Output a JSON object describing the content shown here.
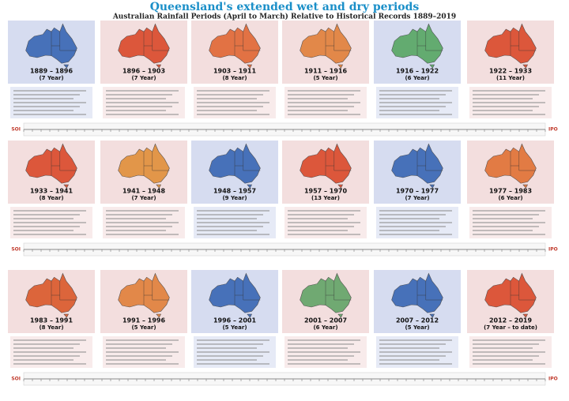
{
  "header": {
    "title": "Queensland's extended wet and dry periods",
    "subtitle": "Australian Rainfall Periods (April to March) Relative to Historical Records 1889–2019"
  },
  "timeline_labels": {
    "left": "SOI",
    "right": "IPO"
  },
  "rows": [
    {
      "panels": [
        {
          "period": "1889 – 1896",
          "duration": "(7 Year)",
          "color": "#d6dcf0",
          "map_color": "#2f5fb0"
        },
        {
          "period": "1896 – 1903",
          "duration": "(7 Year)",
          "color": "#f3dede",
          "map_color": "#d8401f"
        },
        {
          "period": "1903 – 1911",
          "duration": "(8 Year)",
          "color": "#f3dede",
          "map_color": "#e0602a"
        },
        {
          "period": "1911 – 1916",
          "duration": "(5 Year)",
          "color": "#f3dede",
          "map_color": "#e07a30"
        },
        {
          "period": "1916 – 1922",
          "duration": "(6 Year)",
          "color": "#d6dcf0",
          "map_color": "#4fa35a"
        },
        {
          "period": "1922 – 1933",
          "duration": "(11 Year)",
          "color": "#f3dede",
          "map_color": "#d8401f"
        }
      ]
    },
    {
      "panels": [
        {
          "period": "1933 – 1941",
          "duration": "(8 Year)",
          "color": "#f3dede",
          "map_color": "#d8401f"
        },
        {
          "period": "1941 – 1948",
          "duration": "(7 Year)",
          "color": "#f3dede",
          "map_color": "#e08a30"
        },
        {
          "period": "1948 – 1957",
          "duration": "(9 Year)",
          "color": "#d6dcf0",
          "map_color": "#2f5fb0"
        },
        {
          "period": "1957 – 1970",
          "duration": "(13 Year)",
          "color": "#f3dede",
          "map_color": "#d8401f"
        },
        {
          "period": "1970 – 1977",
          "duration": "(7 Year)",
          "color": "#d6dcf0",
          "map_color": "#2f5fb0"
        },
        {
          "period": "1977 – 1983",
          "duration": "(6 Year)",
          "color": "#f3dede",
          "map_color": "#e06a2a"
        }
      ]
    },
    {
      "panels": [
        {
          "period": "1983 – 1991",
          "duration": "(8 Year)",
          "color": "#f3dede",
          "map_color": "#d8501f"
        },
        {
          "period": "1991 – 1996",
          "duration": "(5 Year)",
          "color": "#f3dede",
          "map_color": "#e07a30"
        },
        {
          "period": "1996 – 2001",
          "duration": "(5 Year)",
          "color": "#d6dcf0",
          "map_color": "#2f5fb0"
        },
        {
          "period": "2001 – 2007",
          "duration": "(6 Year)",
          "color": "#f3dede",
          "map_color": "#5aa060"
        },
        {
          "period": "2007 – 2012",
          "duration": "(5 Year)",
          "color": "#d6dcf0",
          "map_color": "#2f5fb0"
        },
        {
          "period": "2012 – 2019",
          "duration": "(7 Year – to date)",
          "color": "#f3dede",
          "map_color": "#d8401f"
        }
      ]
    }
  ]
}
